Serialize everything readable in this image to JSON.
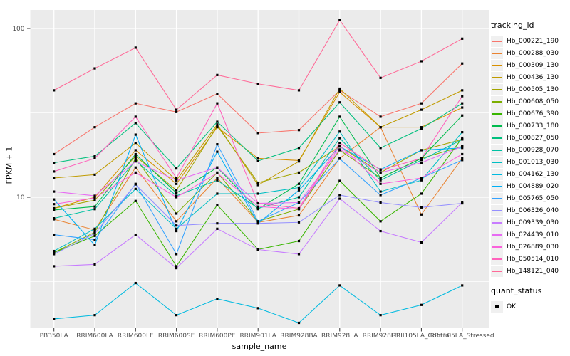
{
  "chart_data": {
    "type": "line",
    "title": "",
    "xlabel": "sample_name",
    "ylabel": "FPKM + 1",
    "y_scale": "log10",
    "y_ticks": [
      10,
      100
    ],
    "y_minor_ticks": [
      3.162,
      31.623
    ],
    "grid": true,
    "legend_position": "right",
    "legend_title": "tracking_id",
    "legend2_title": "quant_status",
    "quant_status": {
      "label": "OK",
      "shape": "square",
      "color": "#000000"
    },
    "panel_background": "#EBEBEB",
    "grid_color": "#FFFFFF",
    "tick_color": "#333333",
    "tick_label_color": "#4D4D4D",
    "point_color": "#000000",
    "categories": [
      "PB350LA",
      "RRIM600LA",
      "RRIM600LE",
      "RRIM600SE",
      "RRIM600PE",
      "RRIM901LA",
      "RRIM928BA",
      "RRIM928LA",
      "RRIM928LE",
      "RRII105LA_Control",
      "RRII105LA_Stressed"
    ],
    "series": [
      {
        "name": "Hb_000221_190",
        "color": "#F8766D",
        "values": [
          18,
          26,
          36,
          32,
          41,
          24,
          25,
          43,
          30,
          36,
          62
        ]
      },
      {
        "name": "Hb_000288_030",
        "color": "#EA8331",
        "values": [
          7.4,
          6.4,
          15,
          7.2,
          13,
          7.1,
          7.8,
          17,
          26,
          7.9,
          17
        ]
      },
      {
        "name": "Hb_000309_130",
        "color": "#D89000",
        "values": [
          8.6,
          10,
          19,
          12,
          26,
          17,
          16.5,
          42,
          26,
          26,
          34
        ]
      },
      {
        "name": "Hb_000436_130",
        "color": "#C09B00",
        "values": [
          13,
          13.6,
          21,
          12.6,
          27,
          11.8,
          16.3,
          44,
          26,
          33,
          43
        ]
      },
      {
        "name": "Hb_000505_130",
        "color": "#A3A500",
        "values": [
          8.6,
          9.6,
          17.5,
          11,
          26.5,
          12.2,
          14,
          20,
          14,
          19,
          22
        ]
      },
      {
        "name": "Hb_000608_050",
        "color": "#7CAE00",
        "values": [
          4.7,
          6.2,
          17,
          8,
          14,
          7.2,
          8.5,
          19,
          13,
          17,
          20
        ]
      },
      {
        "name": "Hb_000676_390",
        "color": "#39B600",
        "values": [
          4.7,
          5.9,
          9.5,
          3.9,
          9,
          4.9,
          5.5,
          12.5,
          7.2,
          10.5,
          22.5
        ]
      },
      {
        "name": "Hb_000733_180",
        "color": "#00BB4E",
        "values": [
          8.4,
          8.8,
          18,
          10.6,
          15,
          8.5,
          12,
          30,
          13,
          17,
          30.5
        ]
      },
      {
        "name": "Hb_000827_050",
        "color": "#00BF7D",
        "values": [
          16,
          17.5,
          27.5,
          14.8,
          28,
          16.4,
          19.6,
          36.5,
          19.6,
          25.5,
          36
        ]
      },
      {
        "name": "Hb_000928_070",
        "color": "#00C1A3",
        "values": [
          7.5,
          8.5,
          16.5,
          10.2,
          12.6,
          8.6,
          10,
          22.4,
          12.6,
          16.6,
          22
        ]
      },
      {
        "name": "Hb_001013_030",
        "color": "#00BFC4",
        "values": [
          4.8,
          6.5,
          11.2,
          6.5,
          10.5,
          10.5,
          11.4,
          24.5,
          10.8,
          12.6,
          24.3
        ]
      },
      {
        "name": "Hb_004162_130",
        "color": "#00BAE0",
        "values": [
          1.9,
          2,
          3.1,
          2,
          2.5,
          2.2,
          1.8,
          3,
          2,
          2.3,
          3
        ]
      },
      {
        "name": "Hb_004889_020",
        "color": "#00B0F6",
        "values": [
          9.7,
          5.2,
          23.5,
          6.3,
          18.6,
          7,
          11,
          20,
          14.6,
          19,
          19.6
        ]
      },
      {
        "name": "Hb_005765_050",
        "color": "#35A2FF",
        "values": [
          6,
          5.6,
          12,
          4.6,
          20.6,
          7.2,
          9.3,
          16.9,
          10.3,
          13,
          16.6
        ]
      },
      {
        "name": "Hb_006326_040",
        "color": "#9590FF",
        "values": [
          4.6,
          6.1,
          11.9,
          6.8,
          7,
          7,
          7.1,
          10.3,
          9.3,
          8.7,
          9.2
        ]
      },
      {
        "name": "Hb_009339_030",
        "color": "#C77CFF",
        "values": [
          3.9,
          4,
          6,
          3.8,
          6.5,
          4.9,
          4.6,
          9.8,
          6.3,
          5.4,
          9.3
        ]
      },
      {
        "name": "Hb_024439_010",
        "color": "#E76BF3",
        "values": [
          10.8,
          10.2,
          16.3,
          12.6,
          15,
          9.2,
          9.3,
          19.2,
          14,
          16,
          20
        ]
      },
      {
        "name": "Hb_026889_030",
        "color": "#FA62DB",
        "values": [
          9.1,
          9.9,
          14,
          10,
          13.9,
          8.8,
          8.5,
          20.2,
          12,
          13,
          18
        ]
      },
      {
        "name": "Hb_050514_010",
        "color": "#FF62BC",
        "values": [
          14.2,
          17,
          30,
          13,
          36,
          9.2,
          8.6,
          21,
          14.5,
          17,
          39.7
        ]
      },
      {
        "name": "Hb_148121_040",
        "color": "#FF6A98",
        "values": [
          43,
          58,
          77,
          33,
          53,
          47,
          43,
          112,
          51,
          64,
          87
        ]
      }
    ]
  }
}
